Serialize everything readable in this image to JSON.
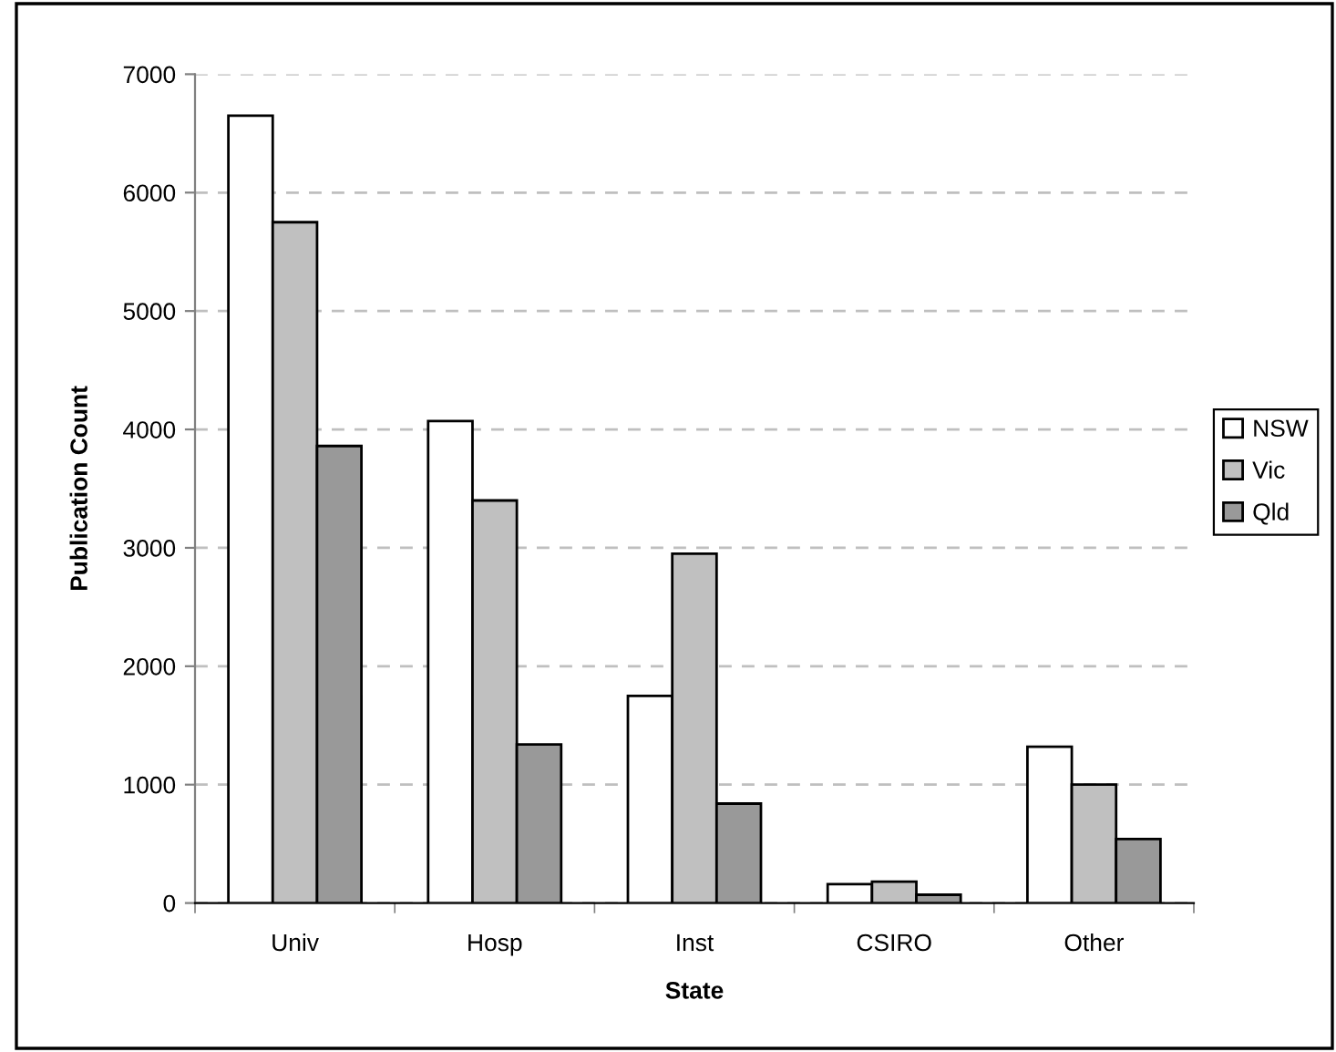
{
  "chart_data": {
    "type": "bar",
    "xlabel": "State",
    "ylabel": "Publication Count",
    "categories": [
      "Univ",
      "Hosp",
      "Inst",
      "CSIRO",
      "Other"
    ],
    "series": [
      {
        "name": "NSW",
        "color": "#ffffff",
        "values": [
          6650,
          4070,
          1750,
          160,
          1320
        ]
      },
      {
        "name": "Vic",
        "color": "#c0c0c0",
        "values": [
          5750,
          3400,
          2950,
          180,
          1000
        ]
      },
      {
        "name": "Qld",
        "color": "#999999",
        "values": [
          3860,
          1340,
          840,
          70,
          540
        ]
      }
    ],
    "ylim": [
      0,
      7000
    ],
    "yticks": [
      0,
      1000,
      2000,
      3000,
      4000,
      5000,
      6000,
      7000
    ],
    "grid": "y",
    "legend": "right"
  }
}
